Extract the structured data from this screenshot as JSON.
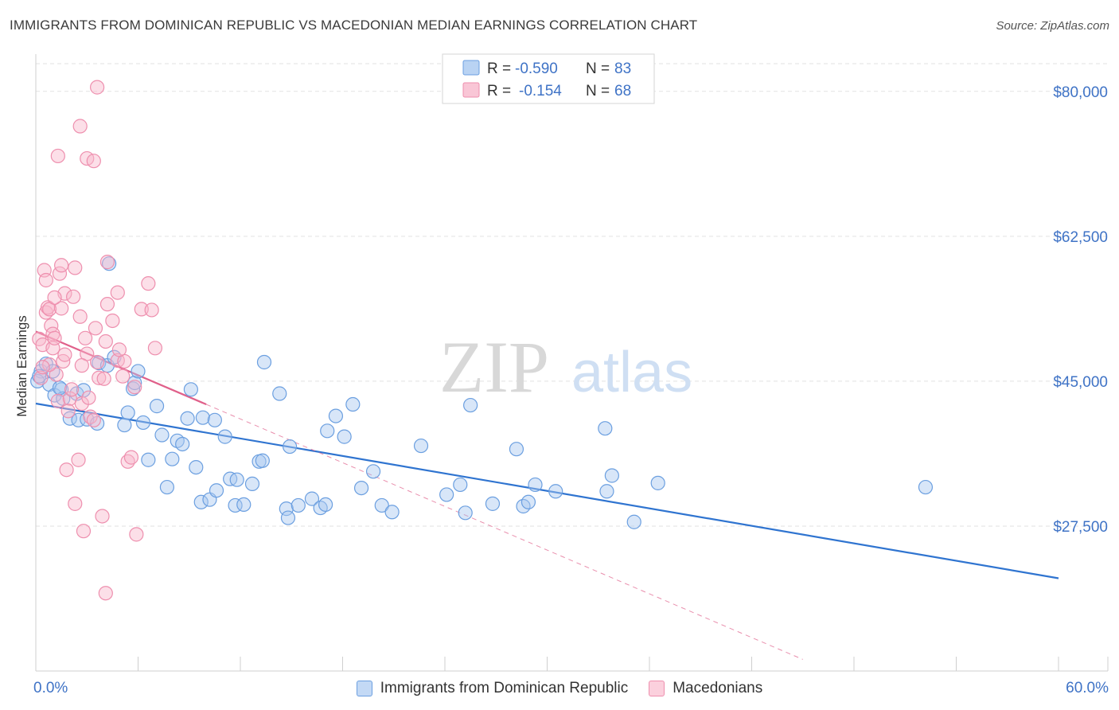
{
  "header": {
    "title": "IMMIGRANTS FROM DOMINICAN REPUBLIC VS MACEDONIAN MEDIAN EARNINGS CORRELATION CHART",
    "source": "Source: ZipAtlas.com"
  },
  "watermark": {
    "zip": "ZIP",
    "atlas": "atlas"
  },
  "legend_box": {
    "rows": [
      {
        "r_label": "R = ",
        "r_value": "-0.590",
        "n_label": "N = ",
        "n_value": "83"
      },
      {
        "r_label": "R = ",
        "r_value": "-0.154",
        "n_label": "N = ",
        "n_value": "68"
      }
    ]
  },
  "colors": {
    "blue_fill": "#a8c8f0",
    "blue_stroke": "#6b9fe0",
    "blue_line": "#2f74d0",
    "pink_fill": "#f8b8cc",
    "pink_stroke": "#ee8fae",
    "pink_line": "#e0608a",
    "axis_label": "#3f73c6",
    "grid": "#e2e2e2"
  },
  "chart_data": {
    "type": "scatter",
    "ylabel": "Median Earnings",
    "xlim": [
      0,
      60
    ],
    "ylim": [
      10000,
      84500
    ],
    "x_tick_labels": [
      "0.0%",
      "60.0%"
    ],
    "y_ticks": [
      27500,
      45000,
      62500,
      80000
    ],
    "y_tick_labels": [
      "$27,500",
      "$45,000",
      "$62,500",
      "$80,000"
    ],
    "grid": "horizontal dashed",
    "legend_position": "top-center",
    "series": [
      {
        "name": "Immigrants from Dominican Republic",
        "color": "blue",
        "trend": {
          "x": [
            0,
            60
          ],
          "y": [
            42300,
            21200
          ],
          "style": "solid"
        },
        "points": [
          [
            0.3,
            46200
          ],
          [
            0.6,
            47100
          ],
          [
            0.8,
            44600
          ],
          [
            1.0,
            46200
          ],
          [
            1.1,
            43300
          ],
          [
            1.5,
            44000
          ],
          [
            1.6,
            42900
          ],
          [
            2.0,
            40500
          ],
          [
            2.4,
            43500
          ],
          [
            2.5,
            40300
          ],
          [
            3.0,
            40400
          ],
          [
            3.6,
            39900
          ],
          [
            3.7,
            47200
          ],
          [
            4.2,
            46900
          ],
          [
            4.3,
            59200
          ],
          [
            4.6,
            47900
          ],
          [
            5.2,
            39700
          ],
          [
            5.4,
            41200
          ],
          [
            5.7,
            44100
          ],
          [
            5.8,
            44800
          ],
          [
            6.0,
            46200
          ],
          [
            6.3,
            40000
          ],
          [
            6.6,
            35500
          ],
          [
            7.1,
            42000
          ],
          [
            7.4,
            38500
          ],
          [
            7.7,
            32200
          ],
          [
            8.0,
            35600
          ],
          [
            8.3,
            37800
          ],
          [
            8.6,
            37400
          ],
          [
            8.9,
            40500
          ],
          [
            9.1,
            44000
          ],
          [
            9.4,
            34600
          ],
          [
            9.7,
            30400
          ],
          [
            9.8,
            40600
          ],
          [
            10.2,
            30700
          ],
          [
            10.5,
            40300
          ],
          [
            10.6,
            31800
          ],
          [
            11.1,
            38300
          ],
          [
            11.4,
            33200
          ],
          [
            11.7,
            30000
          ],
          [
            11.8,
            33100
          ],
          [
            12.2,
            30100
          ],
          [
            12.7,
            32600
          ],
          [
            13.1,
            35300
          ],
          [
            13.3,
            35400
          ],
          [
            13.4,
            47300
          ],
          [
            14.3,
            43500
          ],
          [
            14.7,
            29600
          ],
          [
            14.8,
            28500
          ],
          [
            14.9,
            37100
          ],
          [
            15.4,
            30000
          ],
          [
            16.2,
            30800
          ],
          [
            16.7,
            29700
          ],
          [
            17.0,
            30100
          ],
          [
            17.1,
            39000
          ],
          [
            17.6,
            40800
          ],
          [
            18.1,
            38300
          ],
          [
            18.6,
            42200
          ],
          [
            19.1,
            32100
          ],
          [
            19.8,
            34100
          ],
          [
            20.3,
            30000
          ],
          [
            20.9,
            29200
          ],
          [
            22.6,
            37200
          ],
          [
            24.1,
            31300
          ],
          [
            24.9,
            32500
          ],
          [
            25.2,
            29100
          ],
          [
            25.5,
            42100
          ],
          [
            26.8,
            30200
          ],
          [
            28.2,
            36800
          ],
          [
            28.6,
            29900
          ],
          [
            28.9,
            30400
          ],
          [
            29.3,
            32500
          ],
          [
            30.5,
            31700
          ],
          [
            33.4,
            39300
          ],
          [
            33.5,
            31700
          ],
          [
            33.8,
            33600
          ],
          [
            35.1,
            28000
          ],
          [
            36.5,
            32700
          ],
          [
            52.2,
            32200
          ],
          [
            0.1,
            45000
          ],
          [
            0.2,
            45600
          ],
          [
            1.4,
            44200
          ],
          [
            2.8,
            43900
          ]
        ]
      },
      {
        "name": "Macedonians",
        "color": "pink",
        "trend": {
          "x": [
            0,
            10
          ],
          "y": [
            51000,
            42200
          ],
          "style": "solid",
          "extend_to_x": 45,
          "extend_style": "dashed"
        },
        "points": [
          [
            0.2,
            50100
          ],
          [
            0.3,
            45400
          ],
          [
            0.4,
            49400
          ],
          [
            0.5,
            58400
          ],
          [
            0.6,
            57200
          ],
          [
            0.6,
            53300
          ],
          [
            0.7,
            53900
          ],
          [
            0.8,
            53700
          ],
          [
            0.9,
            51700
          ],
          [
            1.0,
            49000
          ],
          [
            1.0,
            50700
          ],
          [
            1.1,
            50200
          ],
          [
            1.2,
            45800
          ],
          [
            1.3,
            42600
          ],
          [
            1.4,
            58000
          ],
          [
            1.5,
            53800
          ],
          [
            1.6,
            47400
          ],
          [
            1.7,
            55600
          ],
          [
            1.8,
            34300
          ],
          [
            2.0,
            42900
          ],
          [
            2.1,
            44000
          ],
          [
            2.3,
            30200
          ],
          [
            2.5,
            35500
          ],
          [
            2.7,
            42300
          ],
          [
            2.8,
            26900
          ],
          [
            3.0,
            48300
          ],
          [
            3.1,
            43000
          ],
          [
            3.2,
            40700
          ],
          [
            3.4,
            40300
          ],
          [
            3.6,
            47300
          ],
          [
            3.7,
            45400
          ],
          [
            4.0,
            45300
          ],
          [
            4.1,
            49800
          ],
          [
            4.2,
            54300
          ],
          [
            4.5,
            52300
          ],
          [
            4.8,
            47500
          ],
          [
            5.1,
            45600
          ],
          [
            5.2,
            47400
          ],
          [
            5.4,
            35300
          ],
          [
            5.6,
            35800
          ],
          [
            5.9,
            26500
          ],
          [
            6.2,
            53700
          ],
          [
            6.6,
            56800
          ],
          [
            6.8,
            53600
          ],
          [
            7.0,
            49000
          ],
          [
            1.3,
            72200
          ],
          [
            2.6,
            75800
          ],
          [
            3.0,
            71900
          ],
          [
            3.4,
            71600
          ],
          [
            3.6,
            80500
          ],
          [
            1.5,
            59000
          ],
          [
            2.3,
            58700
          ],
          [
            4.2,
            59400
          ],
          [
            4.8,
            55700
          ],
          [
            0.8,
            47000
          ],
          [
            1.9,
            41400
          ],
          [
            3.9,
            28700
          ],
          [
            4.1,
            19400
          ],
          [
            4.9,
            48800
          ],
          [
            2.7,
            46900
          ],
          [
            5.8,
            44300
          ],
          [
            2.2,
            55200
          ],
          [
            1.1,
            55100
          ],
          [
            0.4,
            46700
          ],
          [
            3.5,
            51400
          ],
          [
            2.9,
            50200
          ],
          [
            1.7,
            48200
          ],
          [
            2.6,
            52800
          ]
        ]
      }
    ]
  }
}
